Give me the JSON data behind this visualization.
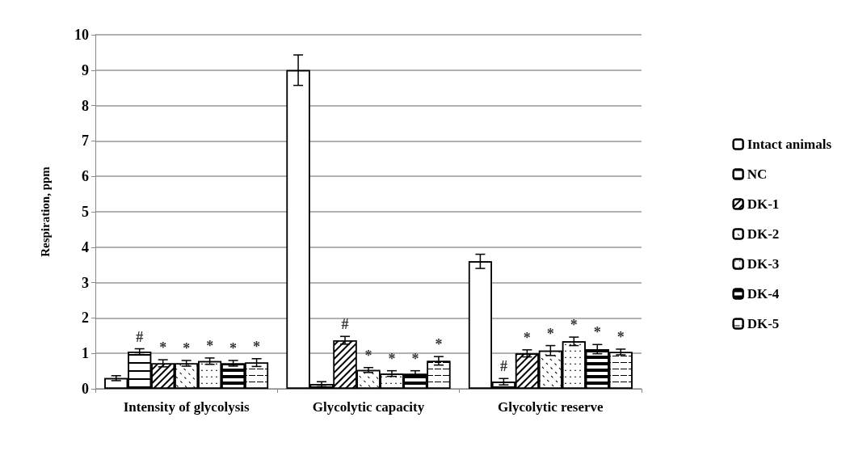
{
  "chart_data": {
    "type": "bar",
    "ylabel": "Respiration, ppm",
    "categories": [
      "Intensity of glycolysis",
      "Glycolytic capacity",
      "Glycolytic reserve"
    ],
    "ylim": [
      0,
      10
    ],
    "yticks": [
      0,
      1,
      2,
      3,
      4,
      5,
      6,
      7,
      8,
      9,
      10
    ],
    "grid": "y",
    "legend": "right",
    "series": [
      {
        "name": "Intact animals",
        "color": "#ffffff",
        "values": [
          0.3,
          9.0,
          3.6
        ],
        "errors": [
          0.07,
          0.43,
          0.2
        ],
        "value_labels": [
          null,
          null,
          null
        ]
      },
      {
        "name": "NC",
        "color": "#ffffff",
        "values": [
          1.05,
          0.13,
          0.2
        ],
        "errors": [
          0.08,
          0.07,
          0.09
        ],
        "value_labels": [
          "#",
          null,
          "#"
        ]
      },
      {
        "name": "DK-1",
        "color": "#ffffff",
        "values": [
          0.72,
          1.37,
          1.0
        ],
        "errors": [
          0.1,
          0.11,
          0.1
        ],
        "value_labels": [
          "*",
          "#",
          "*"
        ]
      },
      {
        "name": "DK-2",
        "color": "#ffffff",
        "values": [
          0.72,
          0.53,
          1.08
        ],
        "errors": [
          0.08,
          0.07,
          0.14
        ],
        "value_labels": [
          "*",
          "*",
          "*"
        ]
      },
      {
        "name": "DK-3",
        "color": "#ffffff",
        "values": [
          0.78,
          0.43,
          1.34
        ],
        "errors": [
          0.09,
          0.08,
          0.12
        ],
        "value_labels": [
          "*",
          "*",
          "*"
        ]
      },
      {
        "name": "DK-4",
        "color": "#ffffff",
        "values": [
          0.72,
          0.42,
          1.12
        ],
        "errors": [
          0.08,
          0.09,
          0.13
        ],
        "value_labels": [
          "*",
          "*",
          "*"
        ]
      },
      {
        "name": "DK-5",
        "color": "#ffffff",
        "values": [
          0.74,
          0.79,
          1.04
        ],
        "errors": [
          0.11,
          0.12,
          0.08
        ],
        "value_labels": [
          "*",
          "*",
          "*"
        ]
      }
    ]
  }
}
